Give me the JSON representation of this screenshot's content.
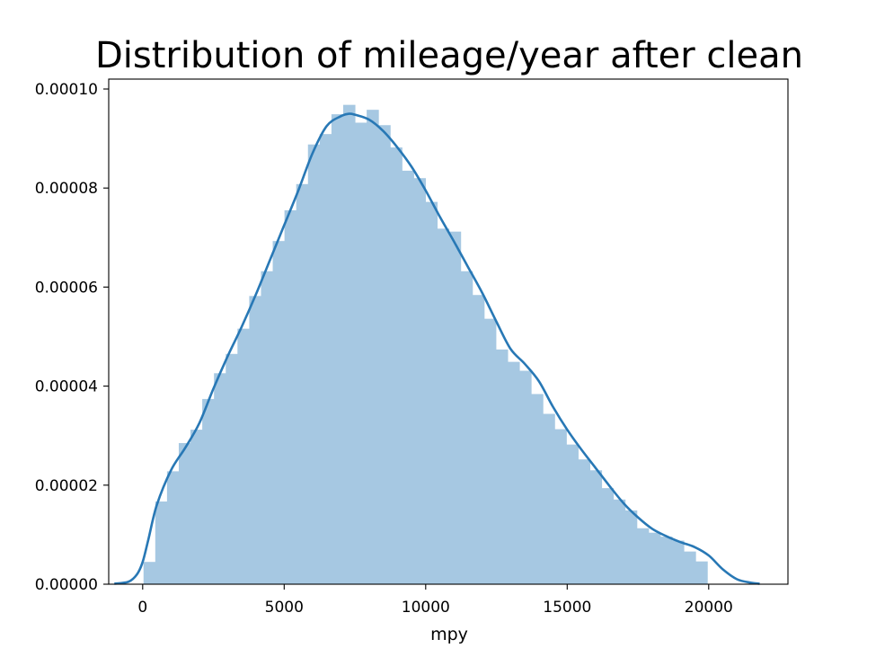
{
  "chart_data": {
    "type": "histogram",
    "title": "Distribution of mileage/year after clean",
    "xlabel": "mpy",
    "ylabel": "",
    "xlim": [
      -1200,
      22800
    ],
    "ylim": [
      0,
      0.000102
    ],
    "xticks": [
      0,
      5000,
      10000,
      15000,
      20000
    ],
    "xtick_labels": [
      "0",
      "5000",
      "10000",
      "15000",
      "20000"
    ],
    "yticks": [
      0,
      2e-05,
      4e-05,
      6e-05,
      8e-05,
      0.0001
    ],
    "ytick_labels": [
      "0.00000",
      "0.00002",
      "0.00004",
      "0.00006",
      "0.00008",
      "0.00010"
    ],
    "grid": false,
    "bins": {
      "start": 30,
      "width": 415,
      "densities": [
        4.5e-06,
        1.67e-05,
        2.28e-05,
        2.85e-05,
        3.12e-05,
        3.74e-05,
        4.26e-05,
        4.65e-05,
        5.16e-05,
        5.82e-05,
        6.32e-05,
        6.93e-05,
        7.55e-05,
        8.08e-05,
        8.88e-05,
        9.09e-05,
        9.49e-05,
        9.68e-05,
        9.32e-05,
        9.58e-05,
        9.27e-05,
        8.82e-05,
        8.35e-05,
        8.2e-05,
        7.72e-05,
        7.18e-05,
        7.12e-05,
        6.32e-05,
        5.84e-05,
        5.36e-05,
        4.74e-05,
        4.49e-05,
        4.31e-05,
        3.84e-05,
        3.44e-05,
        3.13e-05,
        2.82e-05,
        2.52e-05,
        2.3e-05,
        1.94e-05,
        1.71e-05,
        1.49e-05,
        1.13e-05,
        1.04e-05,
        9.6e-06,
        8.8e-06,
        6.6e-06,
        4.6e-06
      ],
      "color": "#a6c8e2"
    },
    "kde": {
      "color": "#2878b5",
      "x": [
        -1000,
        -500,
        -200,
        0,
        200,
        500,
        1000,
        1500,
        2000,
        2500,
        3000,
        3500,
        4000,
        4500,
        5000,
        5500,
        6000,
        6500,
        7000,
        7300,
        7500,
        8000,
        8500,
        9000,
        9500,
        10000,
        10500,
        11000,
        11500,
        12000,
        12500,
        13000,
        13500,
        14000,
        14500,
        15000,
        15500,
        16000,
        16500,
        17000,
        17500,
        18000,
        18500,
        19000,
        19500,
        20000,
        20500,
        21000,
        21500,
        21800
      ],
      "y": [
        1e-07,
        5e-07,
        2e-06,
        4.5e-06,
        9e-06,
        1.6e-05,
        2.3e-05,
        2.75e-05,
        3.25e-05,
        3.95e-05,
        4.6e-05,
        5.2e-05,
        5.85e-05,
        6.55e-05,
        7.25e-05,
        7.95e-05,
        8.7e-05,
        9.25e-05,
        9.45e-05,
        9.5e-05,
        9.48e-05,
        9.38e-05,
        9.15e-05,
        8.82e-05,
        8.43e-05,
        7.95e-05,
        7.42e-05,
        6.92e-05,
        6.4e-05,
        5.88e-05,
        5.3e-05,
        4.75e-05,
        4.45e-05,
        4.1e-05,
        3.58e-05,
        3.12e-05,
        2.72e-05,
        2.35e-05,
        1.98e-05,
        1.63e-05,
        1.35e-05,
        1.12e-05,
        9.7e-06,
        8.5e-06,
        7.5e-06,
        5.8e-06,
        3e-06,
        1e-06,
        3e-07,
        1e-07
      ]
    }
  }
}
